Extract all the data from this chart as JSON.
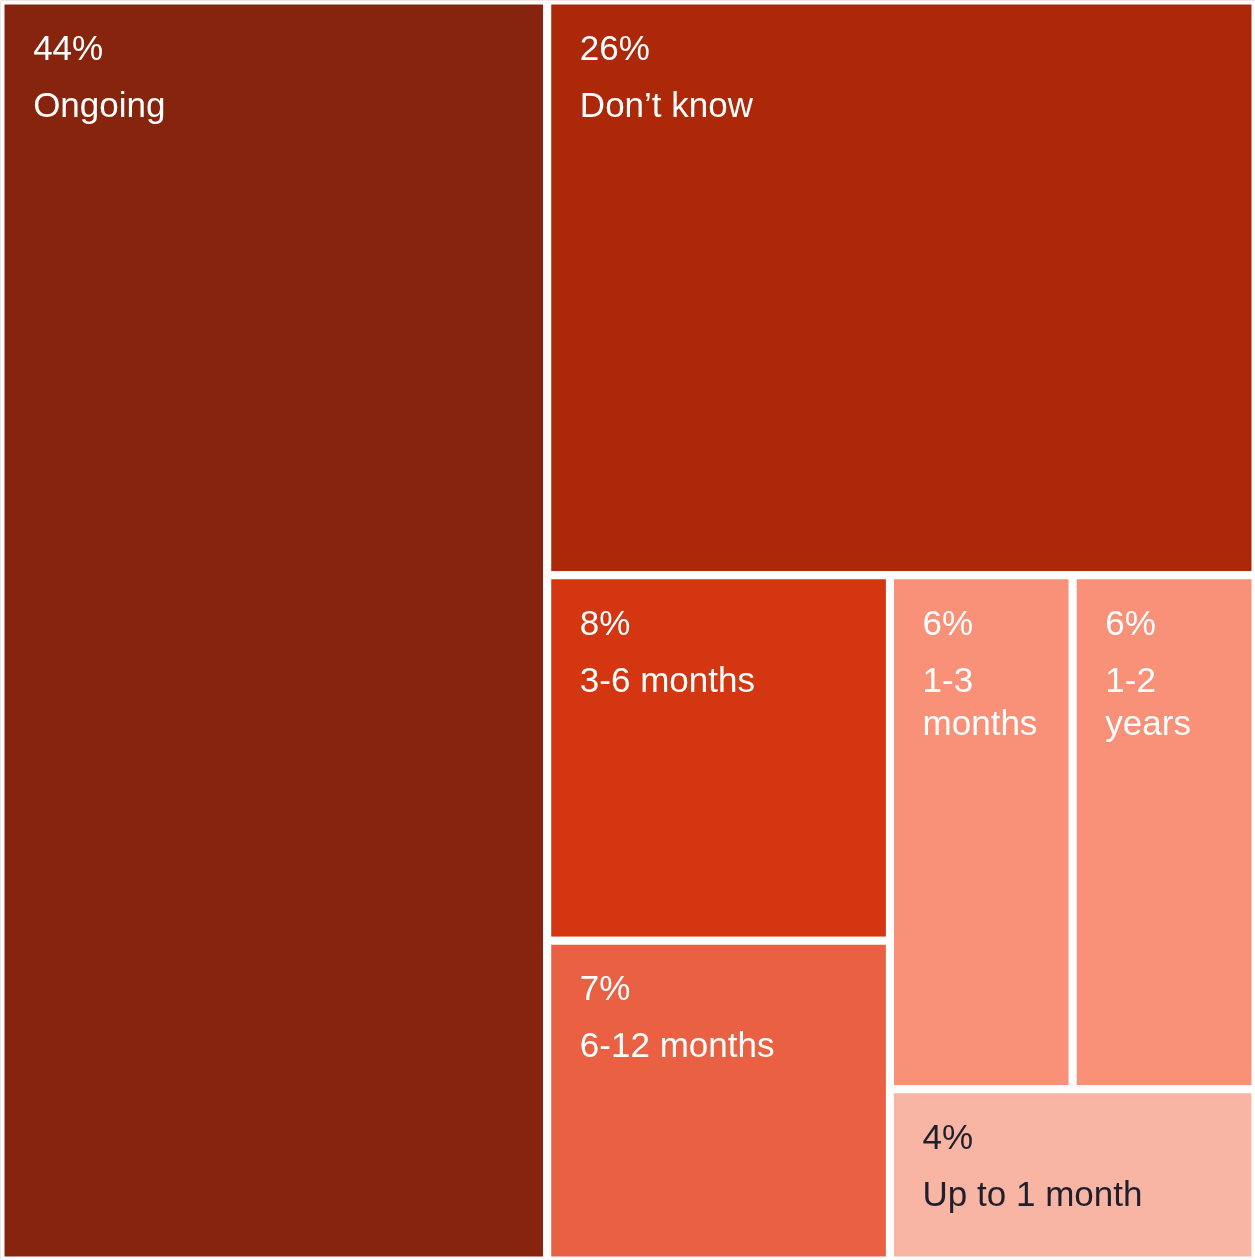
{
  "chart_data": {
    "type": "other",
    "categories": [
      "Ongoing",
      "Don’t know",
      "3-6 months",
      "6-12 months",
      "1-3 months",
      "1-2 years",
      "Up to 1 month"
    ],
    "values": [
      44,
      26,
      8,
      7,
      6,
      6,
      4
    ],
    "value_labels": [
      "44%",
      "26%",
      "8%",
      "7%",
      "6%",
      "6%",
      "4%"
    ],
    "colors": [
      "#87240d",
      "#ad2709",
      "#d33610",
      "#e96042",
      "#f99178",
      "#f99178",
      "#f9b5a3"
    ]
  }
}
